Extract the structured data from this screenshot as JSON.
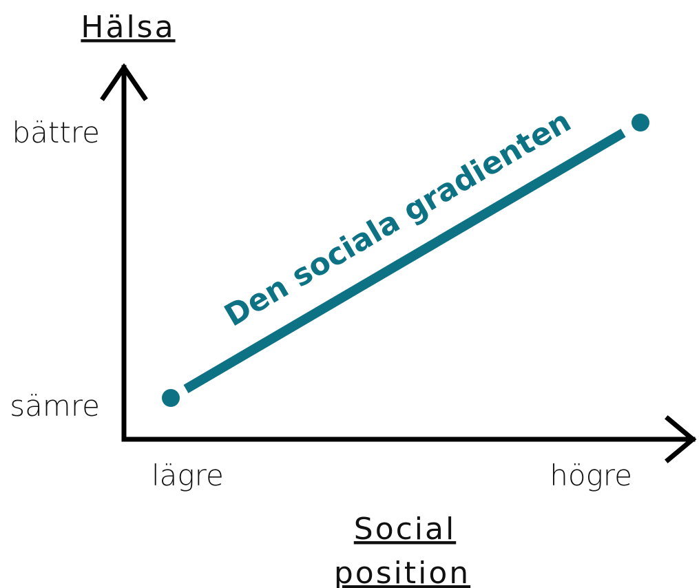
{
  "y_axis": {
    "title": "Hälsa",
    "high": "bättre",
    "low": "sämre"
  },
  "x_axis": {
    "title_lines": [
      "Social",
      "position"
    ],
    "low": "lägre",
    "high": "högre"
  },
  "line_label": "Den sociala gradienten"
}
